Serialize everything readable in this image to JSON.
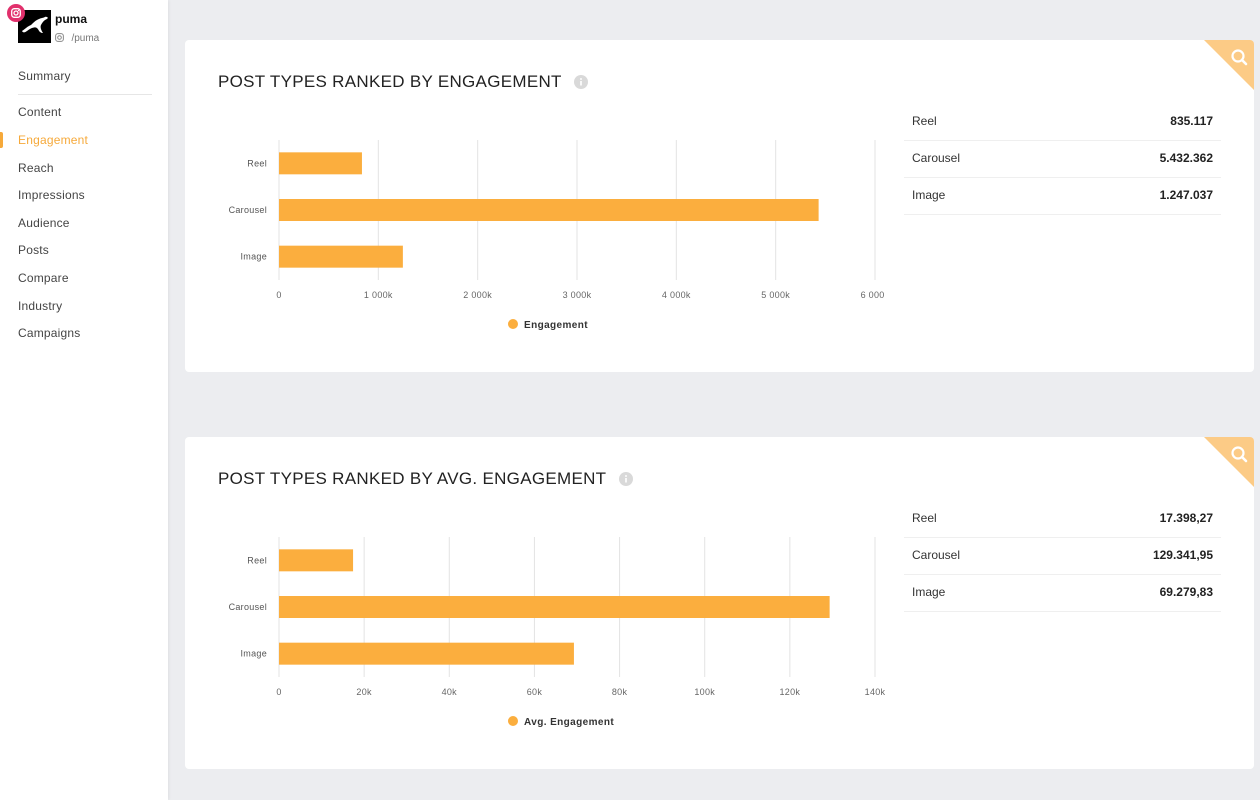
{
  "profile": {
    "name": "puma",
    "handle": "/puma"
  },
  "nav": {
    "summary": "Summary",
    "items": [
      {
        "label": "Content",
        "active": false
      },
      {
        "label": "Engagement",
        "active": true
      },
      {
        "label": "Reach",
        "active": false
      },
      {
        "label": "Impressions",
        "active": false
      },
      {
        "label": "Audience",
        "active": false
      },
      {
        "label": "Posts",
        "active": false
      },
      {
        "label": "Compare",
        "active": false
      },
      {
        "label": "Industry",
        "active": false
      },
      {
        "label": "Campaigns",
        "active": false
      }
    ]
  },
  "colors": {
    "accent": "#F6A93A",
    "bar": "#FBAE3E",
    "instagram": "#E1306C"
  },
  "cards": [
    {
      "title": "POST TYPES RANKED BY ENGAGEMENT",
      "table": [
        {
          "label": "Reel",
          "value": "835.117"
        },
        {
          "label": "Carousel",
          "value": "5.432.362"
        },
        {
          "label": "Image",
          "value": "1.247.037"
        }
      ]
    },
    {
      "title": "POST TYPES RANKED BY AVG. ENGAGEMENT",
      "table": [
        {
          "label": "Reel",
          "value": "17.398,27"
        },
        {
          "label": "Carousel",
          "value": "129.341,95"
        },
        {
          "label": "Image",
          "value": "69.279,83"
        }
      ]
    }
  ],
  "chart_data": [
    {
      "type": "bar",
      "orientation": "horizontal",
      "title": "POST TYPES RANKED BY ENGAGEMENT",
      "categories": [
        "Reel",
        "Carousel",
        "Image"
      ],
      "series": [
        {
          "name": "Engagement",
          "values": [
            835117,
            5432362,
            1247037
          ]
        }
      ],
      "xlim": [
        0,
        6000000
      ],
      "ticks": [
        0,
        1000000,
        2000000,
        3000000,
        4000000,
        5000000,
        6000000
      ],
      "tick_labels": [
        "0",
        "1 000k",
        "2 000k",
        "3 000k",
        "4 000k",
        "5 000k",
        "6 000k"
      ],
      "grid": true,
      "legend": "bottom"
    },
    {
      "type": "bar",
      "orientation": "horizontal",
      "title": "POST TYPES RANKED BY AVG. ENGAGEMENT",
      "categories": [
        "Reel",
        "Carousel",
        "Image"
      ],
      "series": [
        {
          "name": "Avg. Engagement",
          "values": [
            17398.27,
            129341.95,
            69279.83
          ]
        }
      ],
      "xlim": [
        0,
        140000
      ],
      "ticks": [
        0,
        20000,
        40000,
        60000,
        80000,
        100000,
        120000,
        140000
      ],
      "tick_labels": [
        "0",
        "20k",
        "40k",
        "60k",
        "80k",
        "100k",
        "120k",
        "140k"
      ],
      "grid": true,
      "legend": "bottom"
    }
  ]
}
